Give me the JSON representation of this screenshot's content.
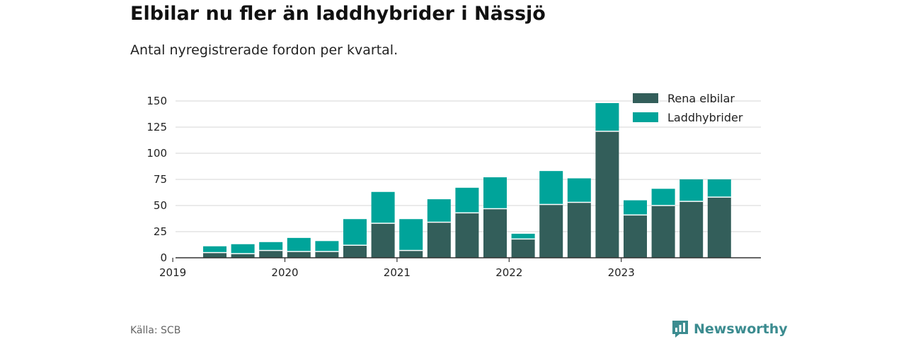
{
  "header": {
    "title": "Elbilar nu fler än laddhybrider i Nässjö",
    "subtitle": "Antal nyregistrerade fordon per kvartal."
  },
  "footer": {
    "source": "Källa: SCB",
    "brand": "Newsworthy"
  },
  "colors": {
    "rena_elbilar": "#335e5a",
    "laddhybrider": "#00a49a",
    "grid": "#dddddd",
    "axis": "#333333",
    "brand": "#3c8c90"
  },
  "chart_data": {
    "type": "bar",
    "stacked": true,
    "categories": [
      "2019 Q2",
      "2019 Q3",
      "2019 Q4",
      "2020 Q1",
      "2020 Q2",
      "2020 Q3",
      "2020 Q4",
      "2021 Q1",
      "2021 Q2",
      "2021 Q3",
      "2021 Q4",
      "2022 Q1",
      "2022 Q2",
      "2022 Q3",
      "2022 Q4",
      "2023 Q1",
      "2023 Q2",
      "2023 Q3",
      "2023 Q4"
    ],
    "series": [
      {
        "name": "Rena elbilar",
        "values": [
          5,
          4,
          7,
          6,
          6,
          12,
          33,
          7,
          34,
          43,
          47,
          18,
          51,
          53,
          121,
          41,
          50,
          54,
          58
        ]
      },
      {
        "name": "Laddhybrider",
        "values": [
          6,
          9,
          8,
          13,
          10,
          25,
          30,
          30,
          22,
          24,
          30,
          5,
          32,
          23,
          27,
          14,
          16,
          21,
          17
        ]
      }
    ],
    "x_tick_labels": [
      "2019",
      "2020",
      "2021",
      "2022",
      "2023"
    ],
    "y_ticks": [
      0,
      25,
      50,
      75,
      100,
      125,
      150
    ],
    "ylim": [
      0,
      150
    ],
    "grid": true,
    "legend_position": "top-right"
  }
}
